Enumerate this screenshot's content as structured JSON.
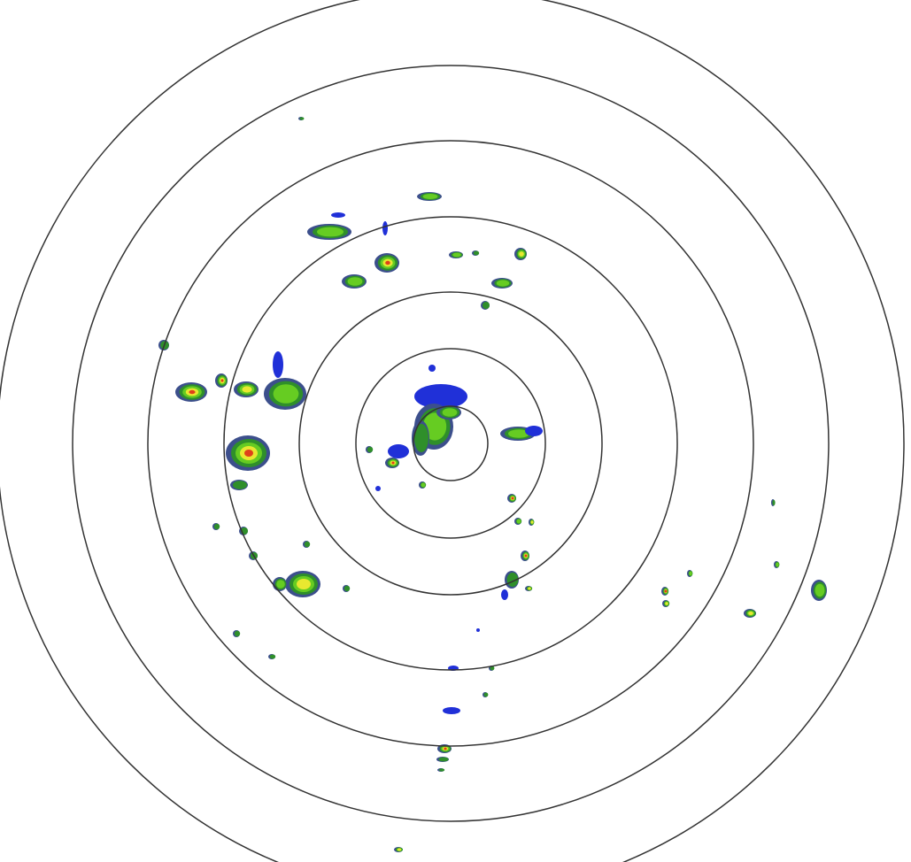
{
  "radar": {
    "range_ring_count": 7,
    "ring_color": "#333333",
    "background_color": "#ffffff",
    "reflectivity_colors": [
      "#2030d8",
      "#2f8f2a",
      "#66cc22",
      "#e8e830",
      "#e0401a"
    ],
    "edge_color": "#3c4f8c",
    "light_echo_color": "#22ccff"
  }
}
